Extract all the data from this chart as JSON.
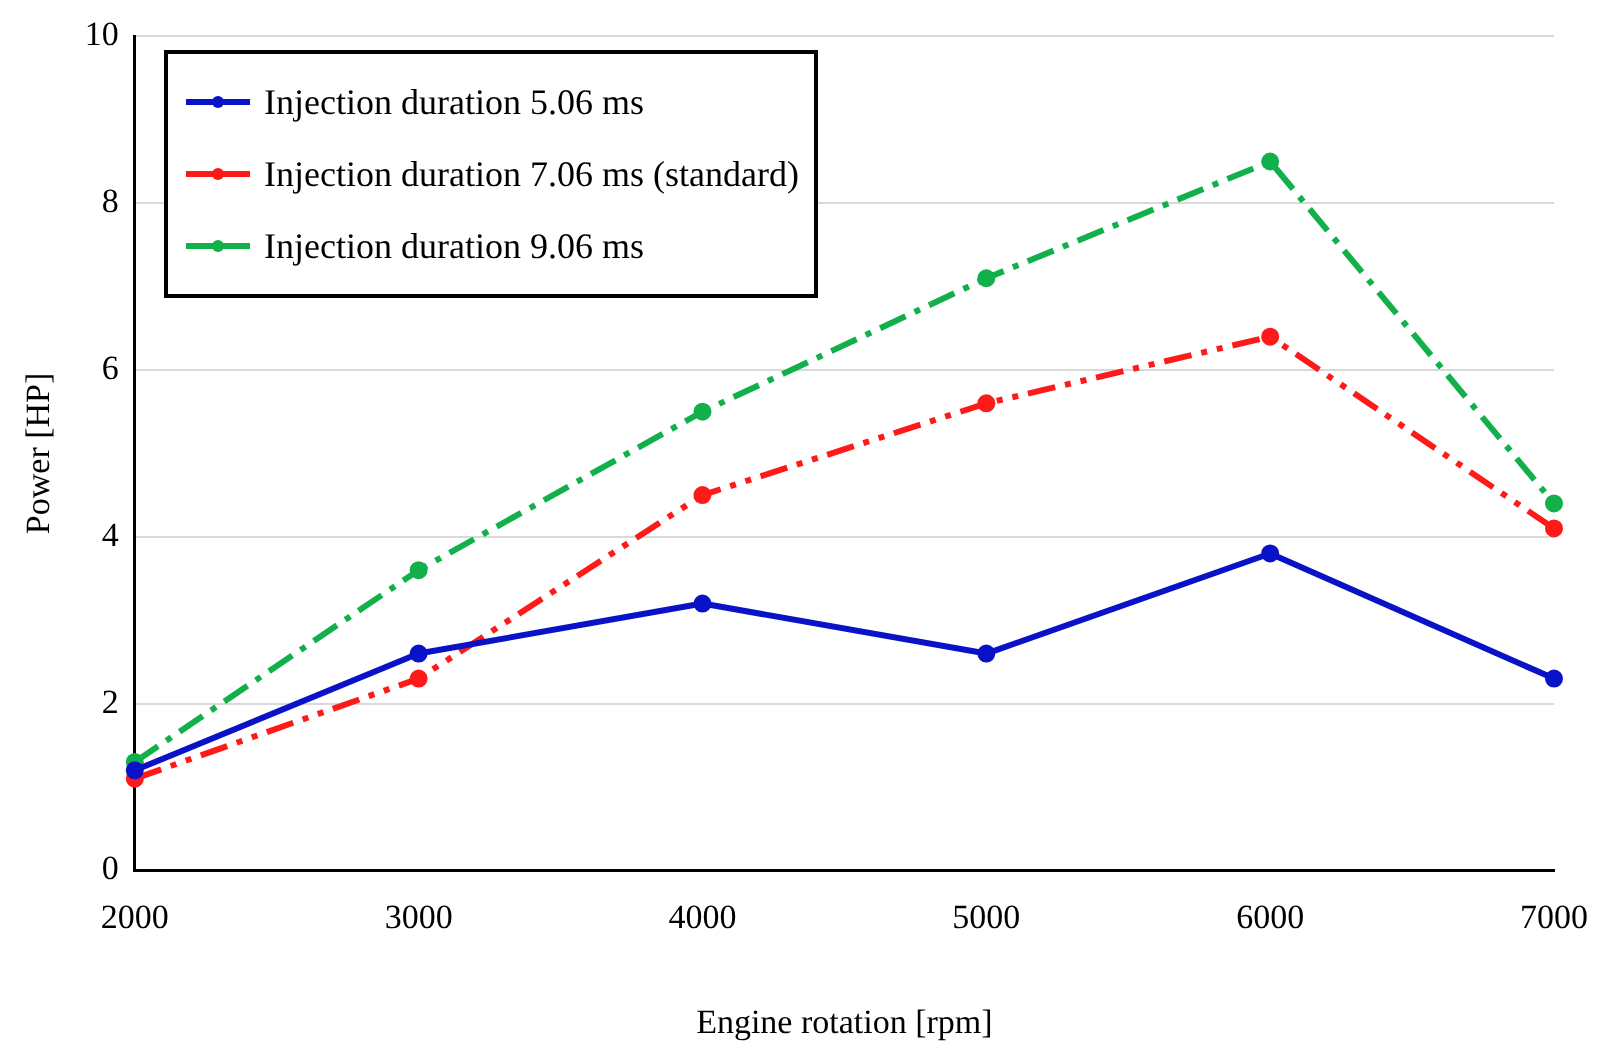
{
  "chart_data": {
    "type": "line",
    "xlabel": "Engine rotation [rpm]",
    "ylabel": "Power [HP]",
    "categories": [
      "2000",
      "3000",
      "4000",
      "5000",
      "6000",
      "7000"
    ],
    "ylim": [
      0,
      10
    ],
    "yticks": [
      0,
      2,
      4,
      6,
      8,
      10
    ],
    "grid": "y",
    "legend": "top left",
    "marker": "circle",
    "series": [
      {
        "name": "Injection duration 5.06 ms",
        "color": "#0a12c8",
        "line_style": "solid",
        "values": [
          1.2,
          2.6,
          3.2,
          2.6,
          3.8,
          2.3
        ]
      },
      {
        "name": "Injection duration 7.06 ms (standard)",
        "color": "#ff1a1a",
        "line_style": "dashed",
        "values": [
          1.1,
          2.3,
          4.5,
          5.6,
          6.4,
          4.1
        ]
      },
      {
        "name": "Injection duration 9.06 ms",
        "color": "#12b04a",
        "line_style": "dashed",
        "values": [
          1.3,
          3.6,
          5.5,
          7.1,
          8.5,
          4.4
        ]
      }
    ]
  }
}
